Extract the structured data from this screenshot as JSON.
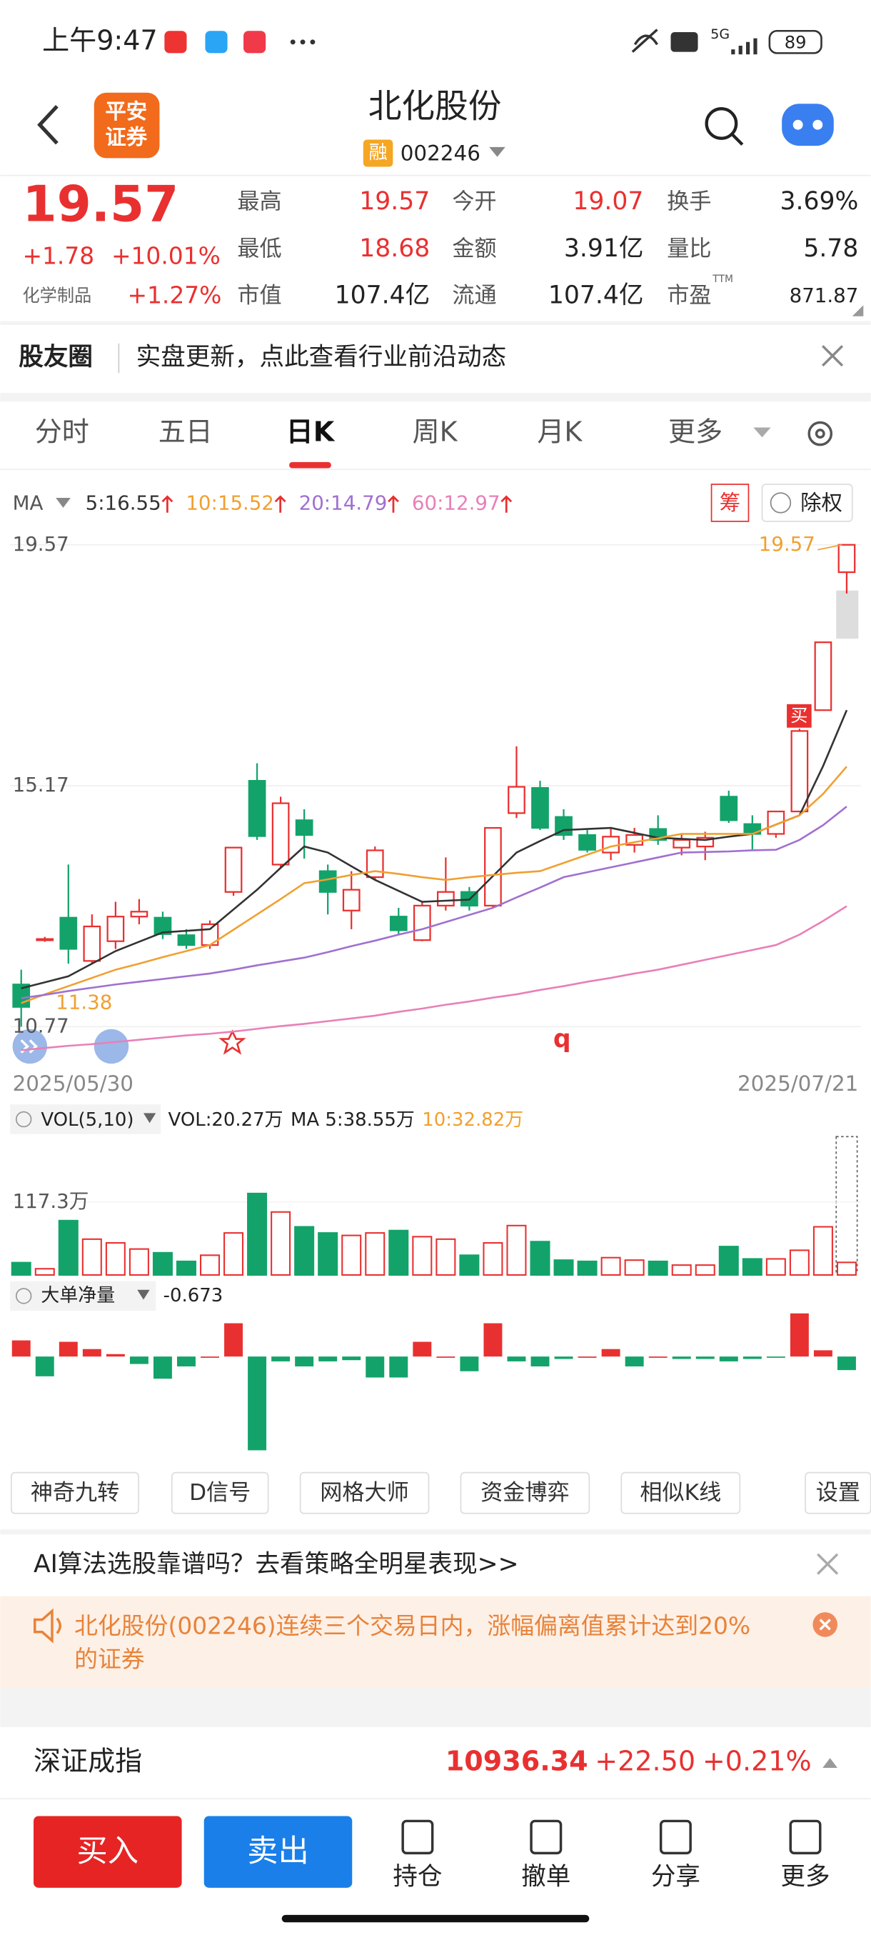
{
  "status_bar": {
    "time": "上午9:47",
    "network": "5G",
    "battery": "89"
  },
  "header": {
    "logo": [
      "平安",
      "证券"
    ],
    "title": "北化股份",
    "badge": "融",
    "code": "002246"
  },
  "quote": {
    "price": "19.57",
    "change": "+1.78",
    "pct": "+10.01%",
    "industry": "化学制品",
    "industry_pct": "+1.27%",
    "fields": [
      {
        "label": "最高",
        "value": "19.57",
        "color": "#e93030"
      },
      {
        "label": "今开",
        "value": "19.07",
        "color": "#e93030"
      },
      {
        "label": "换手",
        "value": "3.69%",
        "color": "#222"
      },
      {
        "label": "最低",
        "value": "18.68",
        "color": "#e93030"
      },
      {
        "label": "金额",
        "value": "3.91亿",
        "color": "#222"
      },
      {
        "label": "量比",
        "value": "5.78",
        "color": "#222"
      },
      {
        "label": "市值",
        "value": "107.4亿",
        "color": "#222"
      },
      {
        "label": "流通",
        "value": "107.4亿",
        "color": "#222"
      },
      {
        "label": "市盈",
        "value": "871.87",
        "color": "#222"
      }
    ],
    "pe_sup": "TTM"
  },
  "community": {
    "label": "股友圈",
    "text": "实盘更新，点此查看行业前沿动态"
  },
  "tabs": {
    "items": [
      "分时",
      "五日",
      "日K",
      "周K",
      "月K",
      "更多"
    ],
    "active": 2
  },
  "chart_controls": {
    "ma": "MA",
    "chips": "筹",
    "adjust": "除权"
  },
  "chart_data": [
    {
      "type": "candlestick",
      "categories": [
        "2025/05/30",
        null,
        null,
        null,
        null,
        null,
        null,
        null,
        null,
        null,
        null,
        null,
        null,
        null,
        null,
        null,
        null,
        null,
        null,
        null,
        null,
        null,
        null,
        null,
        null,
        null,
        null,
        null,
        null,
        null,
        null,
        null,
        null,
        null,
        null,
        "2025/07/21"
      ],
      "open": [
        11.54,
        12.37,
        12.76,
        11.97,
        12.33,
        12.78,
        12.76,
        12.44,
        12.26,
        13.23,
        15.26,
        13.73,
        14.54,
        13.61,
        12.89,
        13.5,
        12.78,
        12.35,
        12.98,
        13.23,
        12.98,
        14.67,
        15.13,
        14.6,
        14.27,
        13.95,
        14.09,
        14.38,
        14.04,
        14.06,
        14.97,
        14.47,
        14.29,
        14.7,
        16.55,
        19.07
      ],
      "high": [
        11.81,
        12.41,
        13.73,
        12.82,
        13.05,
        13.1,
        12.87,
        12.55,
        12.71,
        14.04,
        15.58,
        14.97,
        14.74,
        13.73,
        13.61,
        14.06,
        12.94,
        13.05,
        13.86,
        13.32,
        14.4,
        15.89,
        15.26,
        14.74,
        14.36,
        14.4,
        14.4,
        14.63,
        14.29,
        14.33,
        15.08,
        14.63,
        14.7,
        16.21,
        17.79,
        19.57
      ],
      "low": [
        10.77,
        12.32,
        11.92,
        11.92,
        12.19,
        12.64,
        12.37,
        12.19,
        12.19,
        13.16,
        14.18,
        13.66,
        13.84,
        12.82,
        12.55,
        13.45,
        12.44,
        12.33,
        12.89,
        12.89,
        12.94,
        14.58,
        14.36,
        14.18,
        13.95,
        13.81,
        13.95,
        14.09,
        13.9,
        13.81,
        14.49,
        14.0,
        14.22,
        14.7,
        16.55,
        18.68
      ],
      "close": [
        11.13,
        12.37,
        12.19,
        12.6,
        12.78,
        12.87,
        12.46,
        12.26,
        12.64,
        14.04,
        14.25,
        14.85,
        14.27,
        13.23,
        13.27,
        13.99,
        12.53,
        12.98,
        13.23,
        12.98,
        14.4,
        15.15,
        14.4,
        14.27,
        14.0,
        14.24,
        14.27,
        14.18,
        14.18,
        14.22,
        14.54,
        14.29,
        14.7,
        16.17,
        17.79,
        19.57
      ],
      "up_color": "#e93030",
      "down_color": "#13a36a",
      "ylim": [
        10.77,
        19.57
      ],
      "yticks": [
        19.57,
        15.17,
        10.77
      ],
      "lines": [
        {
          "label": "5:16.55",
          "color": "#333333",
          "values": [
            11.47,
            11.58,
            11.69,
            11.92,
            12.15,
            12.32,
            12.49,
            12.52,
            12.55,
            12.91,
            13.27,
            13.67,
            14.06,
            13.95,
            13.7,
            13.45,
            13.25,
            13.05,
            13.07,
            13.09,
            13.52,
            13.95,
            14.16,
            14.36,
            14.38,
            14.4,
            14.31,
            14.22,
            14.2,
            14.18,
            14.24,
            14.29,
            14.46,
            14.63,
            15.53,
            16.55
          ]
        },
        {
          "label": "10:15.52",
          "color": "#f0a030",
          "values": [
            11.2,
            11.36,
            11.51,
            11.66,
            11.81,
            11.92,
            12.04,
            12.15,
            12.26,
            12.54,
            12.82,
            13.1,
            13.39,
            13.46,
            13.54,
            13.61,
            13.56,
            13.5,
            13.45,
            13.5,
            13.54,
            13.58,
            13.61,
            13.76,
            13.91,
            14.06,
            14.14,
            14.21,
            14.29,
            14.29,
            14.29,
            14.29,
            14.46,
            14.63,
            15.02,
            15.52
          ]
        },
        {
          "label": "20:14.79",
          "color": "#a070d0",
          "values": [
            11.29,
            11.35,
            11.42,
            11.48,
            11.54,
            11.59,
            11.64,
            11.69,
            11.74,
            11.81,
            11.89,
            11.96,
            12.03,
            12.13,
            12.24,
            12.34,
            12.45,
            12.55,
            12.68,
            12.81,
            12.94,
            13.13,
            13.31,
            13.5,
            13.59,
            13.68,
            13.77,
            13.86,
            13.95,
            13.96,
            13.97,
            13.99,
            14.0,
            14.18,
            14.45,
            14.79
          ]
        },
        {
          "label": "60:12.97",
          "color": "#e880b8",
          "values": [
            10.34,
            10.38,
            10.42,
            10.45,
            10.49,
            10.53,
            10.57,
            10.61,
            10.64,
            10.68,
            10.73,
            10.78,
            10.82,
            10.87,
            10.92,
            10.97,
            11.04,
            11.1,
            11.17,
            11.23,
            11.3,
            11.36,
            11.44,
            11.51,
            11.59,
            11.66,
            11.74,
            11.81,
            11.9,
            11.99,
            12.08,
            12.17,
            12.26,
            12.45,
            12.7,
            12.97
          ]
        }
      ],
      "low_label": "11.38",
      "buy_label": "买",
      "mark_q": "q"
    },
    {
      "type": "bar",
      "title": "VOL(5,10)",
      "values": [
        19.9,
        10.0,
        87.6,
        57.7,
        51.7,
        41.8,
        35.8,
        21.9,
        31.8,
        67.7,
        131.3,
        101.5,
        77.6,
        67.7,
        63.7,
        67.7,
        71.6,
        61.7,
        57.7,
        31.8,
        51.7,
        79.6,
        53.7,
        23.9,
        21.9,
        27.9,
        23.9,
        21.9,
        15.9,
        15.9,
        45.8,
        25.9,
        25.9,
        39.8,
        77.6,
        20.27
      ],
      "ylim": [
        0,
        223
      ],
      "yticks": [
        {
          "value": 117.3,
          "label": "117.3万"
        }
      ],
      "legend": [
        {
          "text": "VOL:20.27万",
          "color": "#222"
        },
        {
          "text": "MA 5:38.55万",
          "color": "#222"
        },
        {
          "text": "10:32.82万",
          "color": "#f0a030"
        }
      ]
    },
    {
      "type": "bar",
      "title": "大单净量",
      "values": [
        0.8,
        -0.98,
        0.73,
        0.37,
        0.12,
        -0.37,
        -1.1,
        -0.49,
        0,
        1.65,
        -4.65,
        -0.24,
        -0.49,
        -0.24,
        -0.18,
        -1.04,
        -1.04,
        0.73,
        0,
        -0.73,
        1.65,
        -0.24,
        -0.49,
        -0.12,
        0,
        0.37,
        -0.49,
        0,
        -0.12,
        -0.12,
        -0.24,
        -0.12,
        -0.06,
        2.14,
        0.31,
        -0.673
      ],
      "ylim": [
        -4.9,
        2.33
      ]
    }
  ],
  "tools": [
    "神奇九转",
    "D信号",
    "网格大师",
    "资金博弈",
    "相似K线",
    "设置"
  ],
  "ad": "AI算法选股靠谱吗？去看策略全明星表现>>",
  "notice": [
    "北化股份(002246)连续三个交易日内，涨幅偏离值累计达到20%",
    "的证券"
  ],
  "index_bar": {
    "name": "深证成指",
    "value": "10936.34",
    "change": "+22.50",
    "pct": "+0.21%"
  },
  "bottom": {
    "buy": "买入",
    "sell": "卖出",
    "actions": [
      "持仓",
      "撤单",
      "分享",
      "更多"
    ]
  }
}
